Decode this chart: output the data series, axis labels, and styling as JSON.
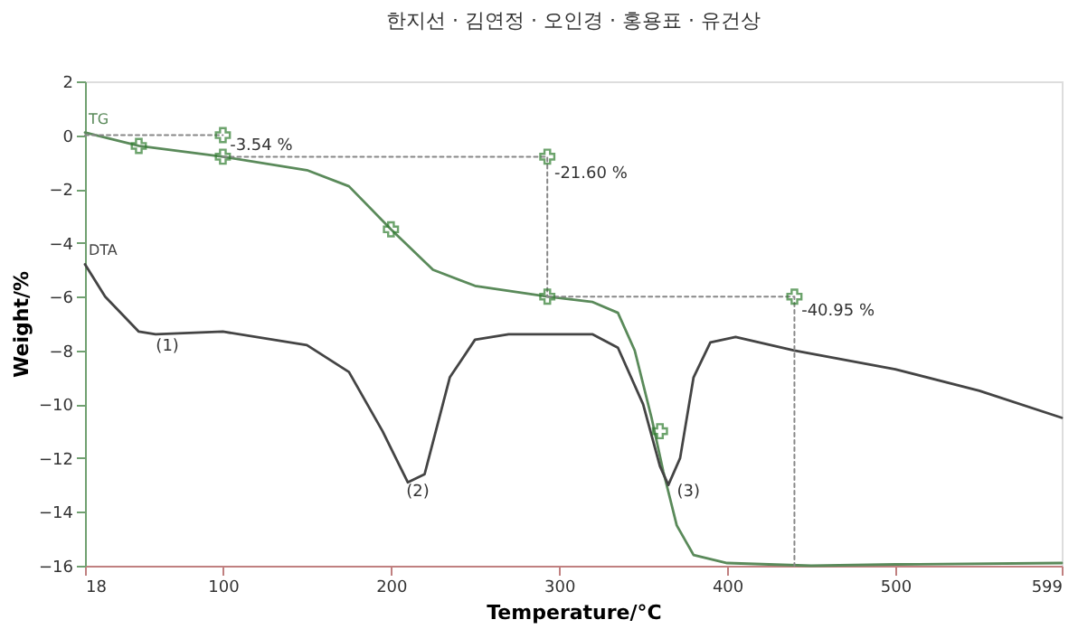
{
  "chart_data": {
    "type": "line",
    "title": "한지선 · 김연정 · 오인경 · 홍용표 · 유건상",
    "xlabel": "Temperature/°C",
    "ylabel": "Weight/%",
    "xlim": [
      18,
      599
    ],
    "xticks": [
      18,
      100,
      200,
      300,
      400,
      500,
      599
    ],
    "ylim": [
      -16,
      2
    ],
    "yticks": [
      -16,
      -14,
      -12,
      -10,
      -8,
      -6,
      -4,
      -2,
      0,
      2
    ],
    "grid": false,
    "legend": false,
    "series": [
      {
        "name": "TG",
        "type": "line",
        "color": "#5a8a5a",
        "line_style": "solid",
        "marker": "none",
        "x": [
          18,
          50,
          100,
          150,
          175,
          200,
          225,
          250,
          293,
          320,
          335,
          345,
          355,
          362,
          370,
          380,
          400,
          450,
          500,
          599
        ],
        "values": [
          0.1,
          -0.4,
          -0.8,
          -1.3,
          -1.9,
          -3.5,
          -5.0,
          -5.6,
          -6.0,
          -6.2,
          -6.6,
          -8,
          -10.5,
          -12.5,
          -14.5,
          -15.6,
          -15.9,
          -16.0,
          -15.95,
          -15.9
        ]
      },
      {
        "name": "DTA",
        "type": "line",
        "color": "#444444",
        "line_style": "solid",
        "marker": "none",
        "x": [
          18,
          30,
          50,
          60,
          100,
          150,
          175,
          195,
          210,
          220,
          235,
          250,
          270,
          320,
          335,
          350,
          360,
          365,
          372,
          380,
          390,
          405,
          440,
          500,
          550,
          599
        ],
        "values": [
          -4.8,
          -6,
          -7.3,
          -7.4,
          -7.3,
          -7.8,
          -8.8,
          -11,
          -12.9,
          -12.6,
          -9,
          -7.6,
          -7.4,
          -7.4,
          -7.9,
          -10,
          -12.3,
          -13,
          -12,
          -9,
          -7.7,
          -7.5,
          -8.0,
          -8.7,
          -9.5,
          -10.5
        ]
      },
      {
        "type": "line",
        "color": "#888888",
        "line_style": "dotted",
        "marker": "none",
        "x": [
          18,
          100
        ],
        "values": [
          0,
          0
        ]
      },
      {
        "type": "line",
        "color": "#888888",
        "line_style": "dotted",
        "marker": "none",
        "x": [
          100,
          293,
          293
        ],
        "values": [
          -0.8,
          -0.8,
          -6.0
        ]
      },
      {
        "type": "line",
        "color": "#888888",
        "line_style": "dotted",
        "marker": "none",
        "x": [
          293,
          440,
          440
        ],
        "values": [
          -6.0,
          -6.0,
          -16.0
        ]
      },
      {
        "type": "scatter",
        "color": "#2e7d2e",
        "marker": "cross",
        "x": [
          50,
          100,
          100,
          200,
          293,
          293,
          440,
          360
        ],
        "values": [
          -0.4,
          -0.8,
          0,
          -3.5,
          -0.8,
          -6.0,
          -6.0,
          -11
        ]
      }
    ],
    "annotations": [
      {
        "text": "(1)",
        "x": 58,
        "y": -7.4
      },
      {
        "text": "(2)",
        "x": 207,
        "y": -12.8
      },
      {
        "text": "(3)",
        "x": 368,
        "y": -12.8
      },
      {
        "text": "-3.54 %",
        "x": 102,
        "y": 0.05
      },
      {
        "text": "-21.60 %",
        "x": 295,
        "y": -1.0
      },
      {
        "text": "-40.95 %",
        "x": 442,
        "y": -6.1
      }
    ]
  }
}
